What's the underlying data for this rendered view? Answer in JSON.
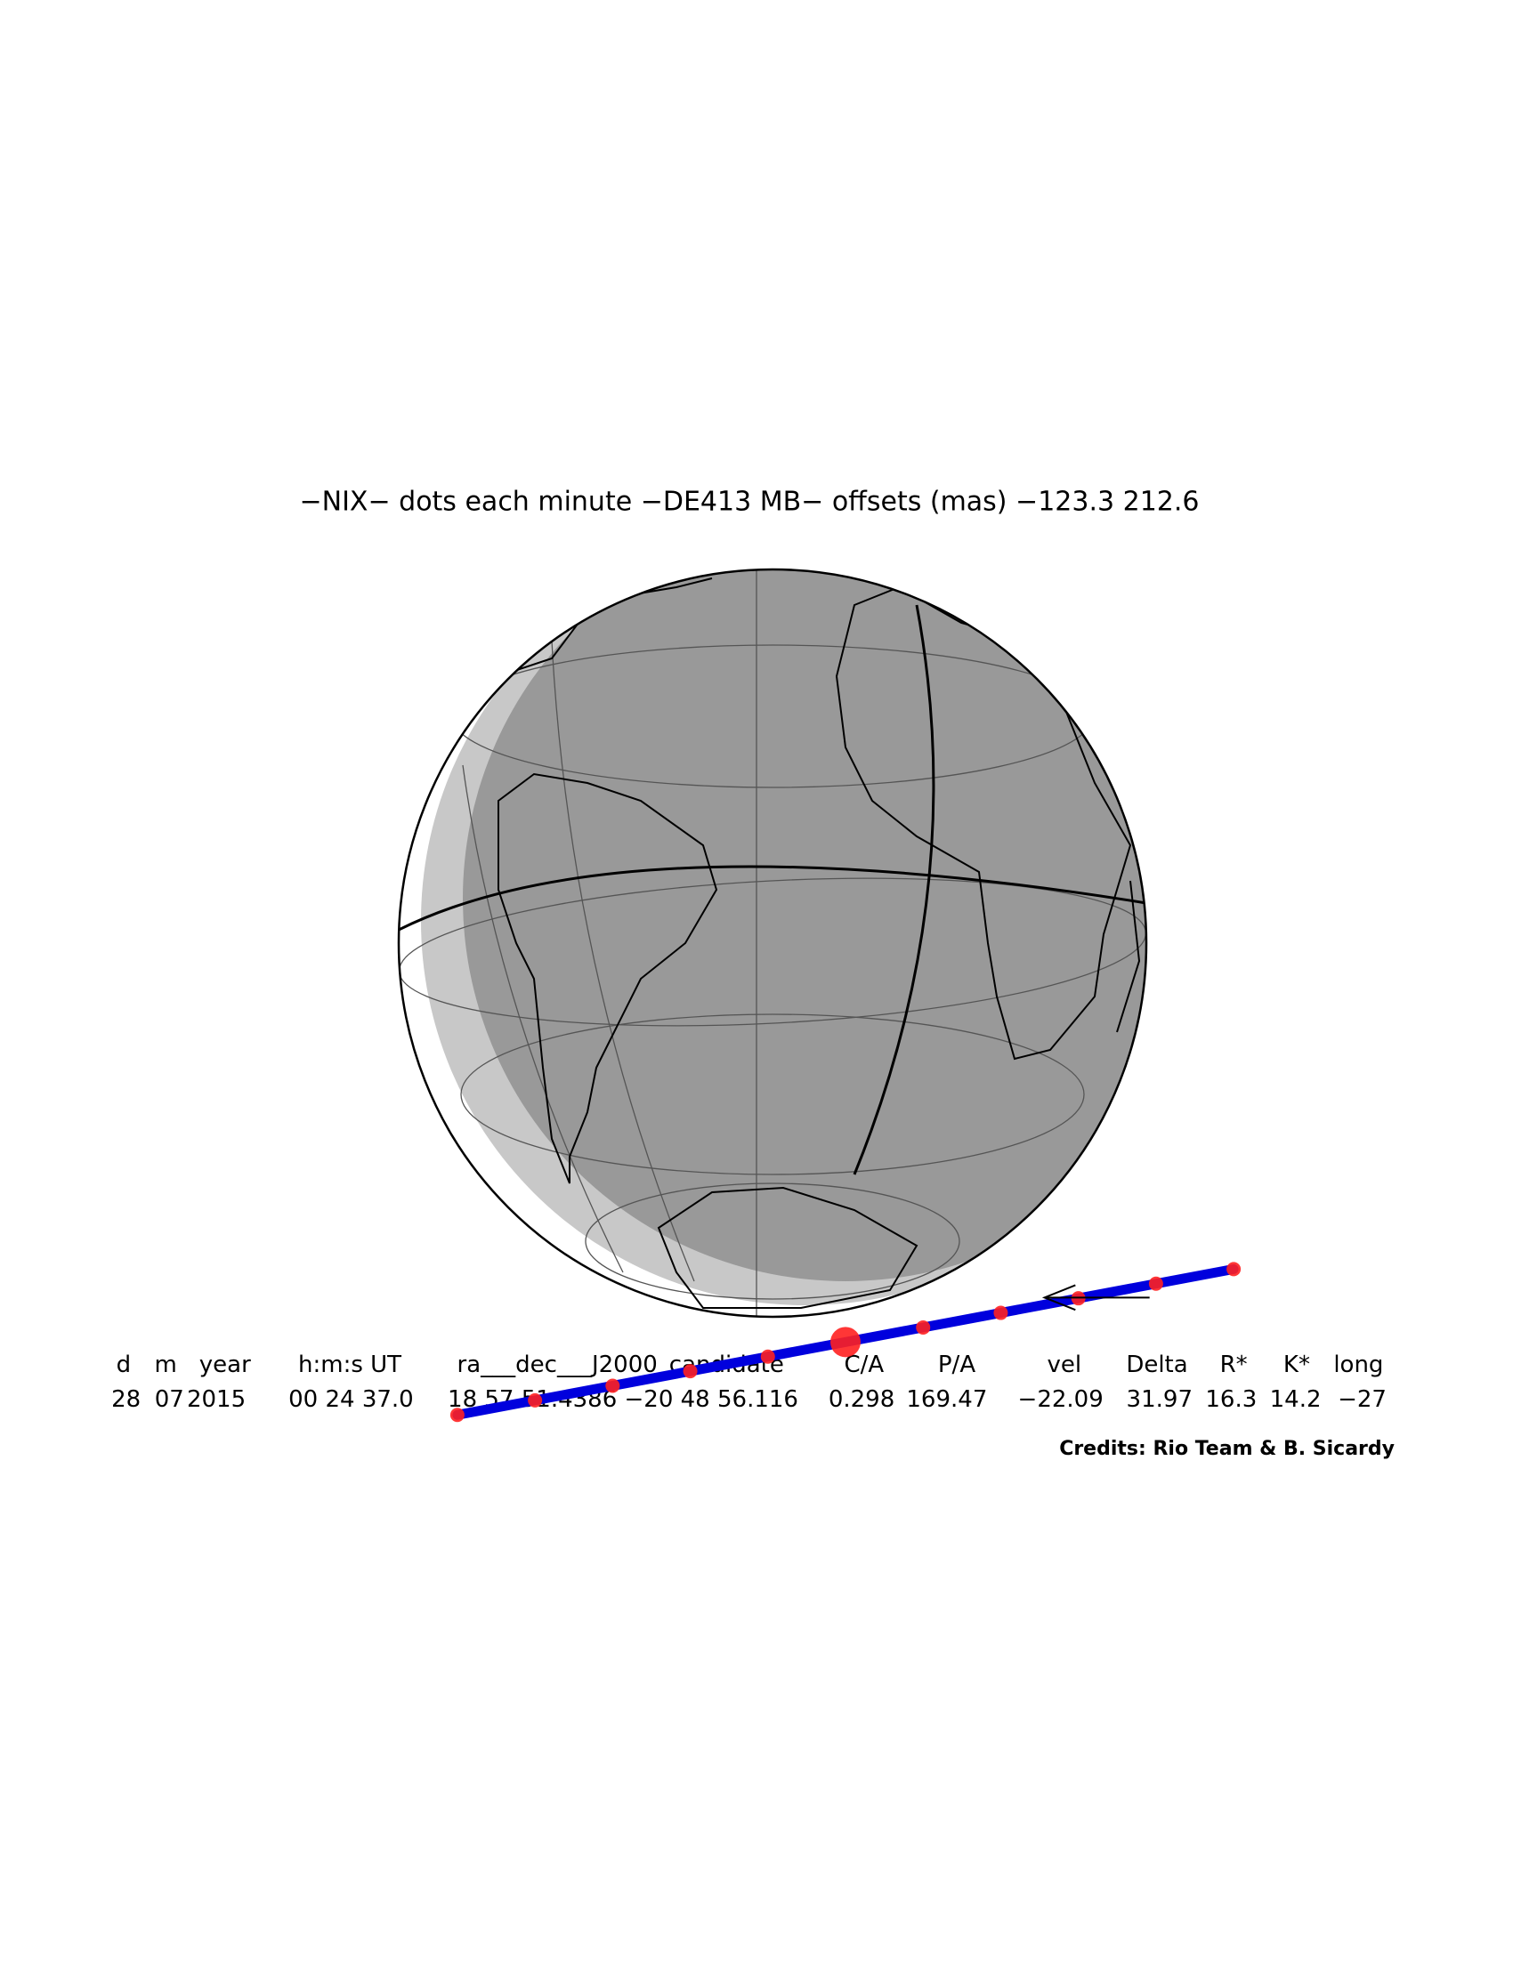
{
  "title": "−NIX− dots each minute −DE413 MB− offsets (mas) −123.3   212.6",
  "table": {
    "header": [
      "d",
      "m",
      "year",
      "h:m:s UT",
      "ra___dec___J2000_candidate",
      "C/A",
      "P/A",
      "vel",
      "Delta",
      "R*",
      "K*",
      "long"
    ],
    "row": [
      "28",
      "07",
      "2015",
      "00 24 37.0",
      "18 57 51.4386 −20 48 56.116",
      "0.298",
      "169.47",
      "−22.09",
      "31.97",
      "16.3",
      "14.2",
      "−27"
    ]
  },
  "credits": "Credits: Rio Team & B. Sicardy"
}
